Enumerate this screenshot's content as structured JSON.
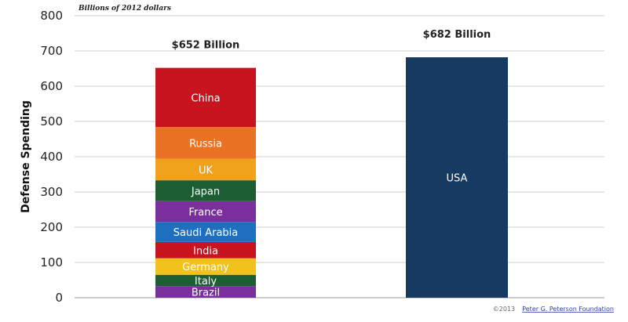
{
  "chart_data": {
    "type": "bar",
    "stacked": true,
    "unit_note": "Billions of 2012 dollars",
    "ylabel": "Defense Spending",
    "ylim": [
      0,
      800
    ],
    "yticks": [
      0,
      100,
      200,
      300,
      400,
      500,
      600,
      700,
      800
    ],
    "grid": true,
    "bars": [
      {
        "name": "left-stack",
        "total": 652,
        "total_label": "$652 Billion",
        "segments": [
          {
            "label": "Brazil",
            "value": 33,
            "color": "#7a2f9c"
          },
          {
            "label": "Italy",
            "value": 32,
            "color": "#1d5d34"
          },
          {
            "label": "Germany",
            "value": 47,
            "color": "#f1c21b"
          },
          {
            "label": "India",
            "value": 46,
            "color": "#c8141f"
          },
          {
            "label": "Saudi Arabia",
            "value": 57,
            "color": "#1f6fbf"
          },
          {
            "label": "France",
            "value": 59,
            "color": "#7a2f9c"
          },
          {
            "label": "Japan",
            "value": 59,
            "color": "#1d5d34"
          },
          {
            "label": "UK",
            "value": 61,
            "color": "#f0a21c"
          },
          {
            "label": "Russia",
            "value": 90,
            "color": "#e97224"
          },
          {
            "label": "China",
            "value": 168,
            "color": "#c8141f"
          }
        ]
      },
      {
        "name": "usa",
        "total": 682,
        "total_label": "$682 Billion",
        "segments": [
          {
            "label": "USA",
            "value": 682,
            "color": "#173a63"
          }
        ]
      }
    ]
  },
  "credit": {
    "prefix": "©2013",
    "org": "Peter G. Peterson Foundation"
  }
}
